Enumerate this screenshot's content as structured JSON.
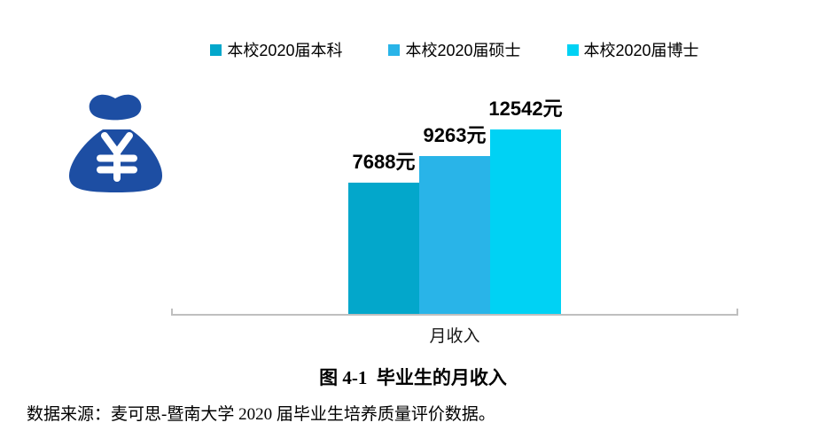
{
  "chart_data": {
    "type": "bar",
    "title": "图 4-1  毕业生的月收入",
    "categories": [
      "本校2020届本科",
      "本校2020届硕士",
      "本校2020届博士"
    ],
    "values": [
      7688,
      9263,
      12542
    ],
    "bar_labels": [
      "7688元",
      "9263元",
      "12542元"
    ],
    "colors": [
      "#03a7cb",
      "#29b4e8",
      "#00d2f4"
    ],
    "xlabel": "月收入",
    "ylabel": "",
    "ylim": [
      0,
      12542
    ],
    "unit": "元",
    "grid": false,
    "legend_position": "top"
  },
  "icon": {
    "name": "money-bag-icon",
    "currency_symbol": "¥",
    "color": "#1d4ea3"
  },
  "caption": "图 4-1  毕业生的月收入",
  "source_note": "数据来源：麦可思-暨南大学 2020 届毕业生培养质量评价数据。",
  "colors": {
    "axis_line": "#bfbfbf",
    "text": "#000000",
    "background": "#ffffff"
  }
}
